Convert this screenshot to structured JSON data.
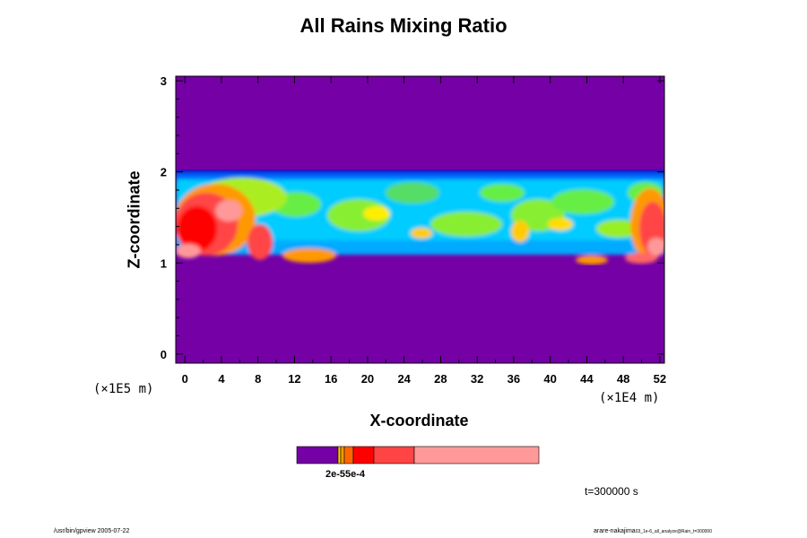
{
  "chart_data": {
    "type": "heatmap",
    "title": "All Rains Mixing Ratio",
    "xlabel": "X-coordinate",
    "ylabel": "Z-coordinate",
    "x_scale_label": "(×1E4 m)",
    "y_scale_label": "(×1E5 m)",
    "x_ticks": [
      0,
      4,
      8,
      12,
      16,
      20,
      24,
      28,
      32,
      36,
      40,
      44,
      48,
      52
    ],
    "y_ticks": [
      0,
      1,
      2,
      3
    ],
    "xlim": [
      -1,
      52.5
    ],
    "ylim": [
      -0.1,
      3.05
    ],
    "background_value_color": "#7400a6",
    "cloud_layer": {
      "z_bottom": 1.0,
      "z_top": 2.0,
      "note_dense_bands": [
        1.0,
        1.3
      ]
    },
    "colorbar": {
      "colors": [
        "#7400a6",
        "#ffcc00",
        "#ff9900",
        "#ff6600",
        "#ff0000",
        "#ff4444",
        "#ff9999"
      ],
      "tick_labels_text": "2e-55e-4"
    },
    "time_label": "t=300000 s"
  },
  "footer": {
    "left": "/usr/bin/gpview 2005-07-22",
    "right_main": "arare-nakajima",
    "right_small": "03_1e-6_all_analyze@Rain_t=300000"
  }
}
